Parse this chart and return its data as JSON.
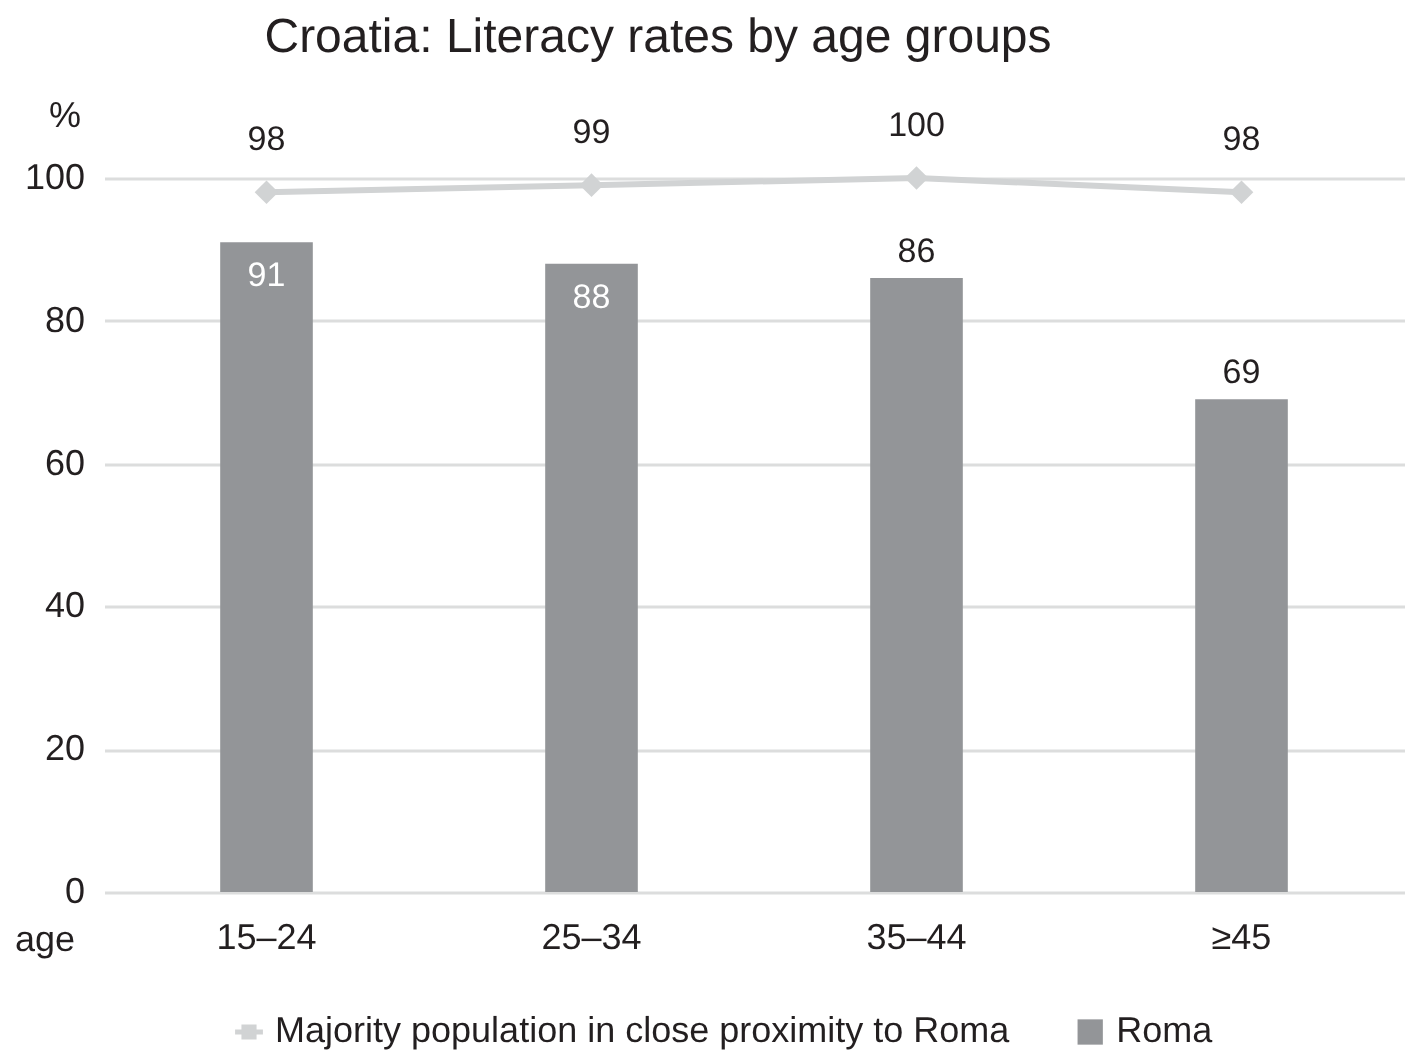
{
  "chart_data": {
    "type": "bar",
    "title": "Croatia: Literacy rates by age groups",
    "ylabel": "%",
    "xlabel": "age",
    "categories": [
      "15–24",
      "25–34",
      "35–44",
      "≥45"
    ],
    "series": [
      {
        "name": "Majority population in close proximity to Roma",
        "type": "line",
        "color": "#d1d3d4",
        "values": [
          98,
          99,
          100,
          98
        ]
      },
      {
        "name": "Roma",
        "color": "#939598",
        "values": [
          91,
          88,
          86,
          69
        ]
      }
    ],
    "ylim": [
      0,
      100
    ],
    "yticks": [
      0,
      20,
      40,
      60,
      80,
      100
    ],
    "grid": "y",
    "legend": "bottom",
    "marker": "diamond",
    "data_labels": true
  }
}
